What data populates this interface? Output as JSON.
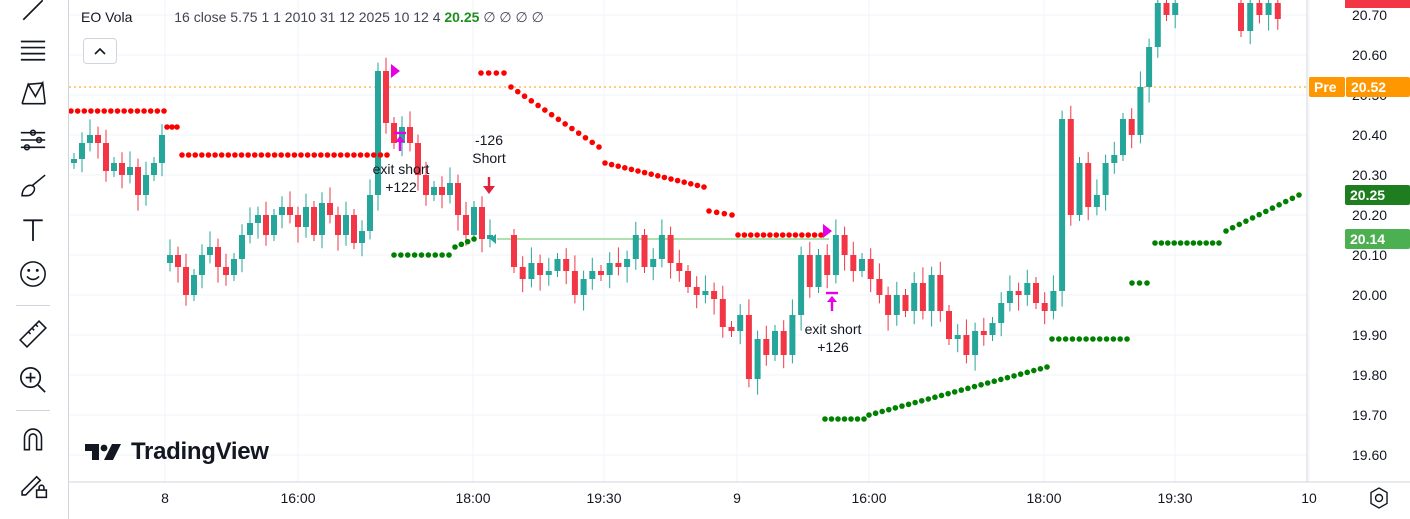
{
  "legend": {
    "symbol": "EO Vola",
    "params": "16 close 5.75 1 1 2010 31 12 2025 10 12 4",
    "value": "20.25",
    "empties": "∅ ∅ ∅ ∅"
  },
  "logo": {
    "text": "TradingView"
  },
  "price_labels": {
    "pre_tag": "Pre",
    "pre_value": "20.52",
    "last_value": "20.25",
    "line_value": "20.14"
  },
  "colors": {
    "up": "#26a69a",
    "down": "#f23645",
    "stop_short": "#ff0000",
    "stop_long": "#008000",
    "signal": "#e600e6",
    "pre_tag": "#ff9800",
    "last_tag": "#1e7d1e",
    "line_tag": "#4caf50"
  },
  "toolbar": {
    "icons": [
      "trend-line-icon",
      "fib-retracement-icon",
      "pattern-icon",
      "forecast-icon",
      "brush-icon",
      "text-icon",
      "emoji-icon",
      "ruler-icon",
      "zoom-in-icon",
      "magnet-icon",
      "lock-draw-icon"
    ]
  },
  "chart_data": {
    "type": "candlestick",
    "title": "EO Vola",
    "y_ticks": [
      "20.70",
      "20.60",
      "20.50",
      "20.40",
      "20.30",
      "20.20",
      "20.10",
      "20.00",
      "19.90",
      "19.80",
      "19.70",
      "19.60"
    ],
    "x_ticks": [
      "8",
      "16:00",
      "18:00",
      "19:30",
      "9",
      "16:00",
      "18:00",
      "19:30",
      "10"
    ],
    "ylim": [
      19.54,
      20.73
    ],
    "grid": true,
    "horizontal_line": 20.14,
    "pre_line": 20.52,
    "annotations": [
      {
        "text": [
          "-126",
          "Short"
        ],
        "type": "entry-short",
        "price": 20.23
      },
      {
        "text": [
          "exit short",
          "+122"
        ],
        "type": "exit-short",
        "price": 20.34
      },
      {
        "text": [
          "exit short",
          "+126"
        ],
        "type": "exit-short",
        "price": 19.98
      }
    ],
    "candles_seg1_open_close": [
      [
        20.33,
        20.34
      ],
      [
        20.34,
        20.38
      ],
      [
        20.38,
        20.4
      ],
      [
        20.4,
        20.38
      ],
      [
        20.38,
        20.31
      ],
      [
        20.31,
        20.33
      ],
      [
        20.33,
        20.3
      ],
      [
        20.3,
        20.32
      ],
      [
        20.32,
        20.25
      ],
      [
        20.25,
        20.3
      ],
      [
        20.3,
        20.33
      ],
      [
        20.33,
        20.4
      ],
      [
        20.08,
        20.1
      ],
      [
        20.1,
        20.07
      ],
      [
        20.07,
        20.0
      ],
      [
        20.0,
        20.05
      ],
      [
        20.05,
        20.1
      ],
      [
        20.1,
        20.12
      ],
      [
        20.12,
        20.07
      ],
      [
        20.07,
        20.05
      ],
      [
        20.05,
        20.09
      ],
      [
        20.09,
        20.15
      ],
      [
        20.15,
        20.18
      ],
      [
        20.18,
        20.2
      ],
      [
        20.2,
        20.15
      ],
      [
        20.15,
        20.2
      ],
      [
        20.2,
        20.22
      ],
      [
        20.22,
        20.2
      ],
      [
        20.2,
        20.17
      ],
      [
        20.17,
        20.22
      ],
      [
        20.22,
        20.15
      ],
      [
        20.15,
        20.23
      ],
      [
        20.23,
        20.2
      ],
      [
        20.2,
        20.15
      ],
      [
        20.15,
        20.2
      ],
      [
        20.2,
        20.13
      ],
      [
        20.13,
        20.16
      ],
      [
        20.16,
        20.25
      ],
      [
        20.25,
        20.56
      ],
      [
        20.56,
        20.43
      ],
      [
        20.43,
        20.38
      ],
      [
        20.38,
        20.42
      ],
      [
        20.42,
        20.38
      ],
      [
        20.38,
        20.3
      ],
      [
        20.3,
        20.25
      ],
      [
        20.25,
        20.27
      ],
      [
        20.27,
        20.25
      ],
      [
        20.25,
        20.28
      ],
      [
        20.28,
        20.2
      ],
      [
        20.2,
        20.15
      ],
      [
        20.15,
        20.22
      ],
      [
        20.22,
        20.14
      ],
      [
        20.14,
        20.15
      ]
    ],
    "candles_seg2_open_close": [
      [
        20.15,
        20.07
      ],
      [
        20.07,
        20.04
      ],
      [
        20.04,
        20.08
      ],
      [
        20.08,
        20.05
      ],
      [
        20.05,
        20.06
      ],
      [
        20.06,
        20.09
      ],
      [
        20.09,
        20.06
      ],
      [
        20.06,
        20.0
      ],
      [
        20.0,
        20.04
      ],
      [
        20.04,
        20.06
      ],
      [
        20.06,
        20.05
      ],
      [
        20.05,
        20.08
      ],
      [
        20.08,
        20.07
      ],
      [
        20.07,
        20.09
      ],
      [
        20.09,
        20.15
      ],
      [
        20.15,
        20.07
      ],
      [
        20.07,
        20.09
      ],
      [
        20.09,
        20.15
      ],
      [
        20.15,
        20.08
      ],
      [
        20.08,
        20.06
      ],
      [
        20.06,
        20.02
      ],
      [
        20.02,
        20.0
      ],
      [
        20.0,
        20.01
      ],
      [
        20.01,
        19.99
      ],
      [
        19.99,
        19.92
      ],
      [
        19.92,
        19.91
      ],
      [
        19.91,
        19.95
      ],
      [
        19.95,
        19.79
      ],
      [
        19.79,
        19.89
      ],
      [
        19.89,
        19.85
      ],
      [
        19.85,
        19.91
      ],
      [
        19.91,
        19.85
      ],
      [
        19.85,
        19.95
      ],
      [
        19.95,
        20.1
      ],
      [
        20.1,
        20.02
      ],
      [
        20.02,
        20.1
      ],
      [
        20.1,
        20.05
      ],
      [
        20.05,
        20.15
      ],
      [
        20.15,
        20.1
      ],
      [
        20.1,
        20.06
      ],
      [
        20.06,
        20.09
      ],
      [
        20.09,
        20.04
      ],
      [
        20.04,
        20.0
      ],
      [
        20.0,
        19.95
      ],
      [
        19.95,
        20.0
      ],
      [
        20.0,
        19.96
      ],
      [
        19.96,
        20.03
      ],
      [
        20.03,
        19.96
      ],
      [
        19.96,
        20.05
      ],
      [
        20.05,
        19.96
      ],
      [
        19.96,
        19.89
      ],
      [
        19.89,
        19.9
      ],
      [
        19.9,
        19.85
      ],
      [
        19.85,
        19.91
      ],
      [
        19.91,
        19.9
      ],
      [
        19.9,
        19.93
      ],
      [
        19.93,
        19.98
      ],
      [
        19.98,
        20.01
      ],
      [
        20.01,
        20.0
      ],
      [
        20.0,
        20.03
      ],
      [
        20.03,
        19.98
      ],
      [
        19.98,
        19.96
      ],
      [
        19.96,
        20.01
      ],
      [
        20.01,
        20.44
      ],
      [
        20.44,
        20.2
      ],
      [
        20.2,
        20.33
      ],
      [
        20.33,
        20.22
      ],
      [
        20.22,
        20.25
      ],
      [
        20.25,
        20.33
      ],
      [
        20.33,
        20.35
      ],
      [
        20.35,
        20.44
      ],
      [
        20.44,
        20.4
      ],
      [
        20.4,
        20.52
      ],
      [
        20.52,
        20.62
      ],
      [
        20.62,
        20.73
      ],
      [
        20.73,
        20.7
      ],
      [
        20.7,
        20.73
      ]
    ],
    "candles_seg3_open_close": [
      [
        20.73,
        20.66
      ],
      [
        20.66,
        20.73
      ],
      [
        20.73,
        20.7
      ],
      [
        20.7,
        20.73
      ],
      [
        20.73,
        20.69
      ]
    ],
    "stop_short_levels": [
      {
        "from": 0,
        "to": 0.095,
        "y": 20.46
      },
      {
        "from": 0.095,
        "to": 0.125,
        "y": 20.42
      },
      {
        "from": 0.125,
        "to": 0.255,
        "y": 20.35
      },
      {
        "from": 0.32,
        "to": 0.345,
        "y": 20.55
      },
      {
        "from": 0.345,
        "to": 0.52,
        "y": "descending"
      },
      {
        "from": 0.52,
        "to": 0.555,
        "y": 20.21
      },
      {
        "from": 0.555,
        "to": 0.65,
        "y": 20.15
      }
    ],
    "stop_long_levels": [
      {
        "from": 0.255,
        "to": 0.31,
        "y": 20.1
      },
      {
        "from": 0.31,
        "to": 0.325,
        "y": "rising"
      },
      {
        "from": 0.64,
        "to": 0.74,
        "y": "rising"
      },
      {
        "from": 0.74,
        "to": 0.81,
        "y": 19.89
      },
      {
        "from": 0.82,
        "to": 0.84,
        "y": 20.03
      },
      {
        "from": 0.85,
        "to": 0.9,
        "y": 20.13
      },
      {
        "from": 0.9,
        "to": 0.97,
        "y": "rising"
      }
    ]
  }
}
